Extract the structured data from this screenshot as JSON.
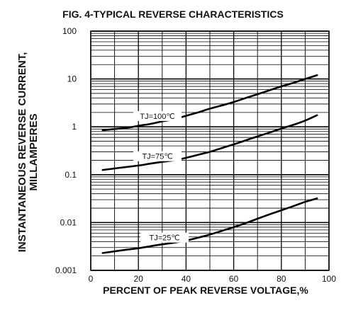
{
  "chart_data": {
    "type": "line",
    "title": "FIG. 4-TYPICAL REVERSE CHARACTERISTICS",
    "xlabel": "PERCENT OF PEAK REVERSE VOLTAGE,%",
    "ylabel_line1": "INSTANTANEOUS REVERSE CURRENT,",
    "ylabel_line2": "MILLAMPERES",
    "xlim": [
      0,
      100
    ],
    "ylim": [
      0.001,
      100
    ],
    "yscale": "log",
    "grid": true,
    "xticks": [
      "0",
      "20",
      "40",
      "60",
      "80",
      "100"
    ],
    "yticks": [
      "100",
      "10",
      "1",
      "0.1",
      "0.01",
      "0.001"
    ],
    "series": [
      {
        "name": "TJ=100℃",
        "x": [
          5,
          10,
          15,
          20,
          25,
          30,
          35,
          40,
          45,
          50,
          55,
          60,
          65,
          70,
          75,
          80,
          85,
          90,
          95
        ],
        "y": [
          0.85,
          0.9,
          0.95,
          1.05,
          1.15,
          1.3,
          1.45,
          1.7,
          2.0,
          2.4,
          2.8,
          3.3,
          4.0,
          4.8,
          5.8,
          7.0,
          8.3,
          10.0,
          12.0
        ]
      },
      {
        "name": "TJ=75℃",
        "x": [
          5,
          10,
          15,
          20,
          25,
          30,
          35,
          40,
          45,
          50,
          55,
          60,
          65,
          70,
          75,
          80,
          85,
          90,
          95
        ],
        "y": [
          0.125,
          0.135,
          0.145,
          0.155,
          0.17,
          0.185,
          0.2,
          0.225,
          0.26,
          0.3,
          0.36,
          0.43,
          0.52,
          0.63,
          0.76,
          0.92,
          1.1,
          1.35,
          1.75
        ]
      },
      {
        "name": "TJ=25℃",
        "x": [
          5,
          10,
          15,
          20,
          25,
          30,
          35,
          40,
          45,
          50,
          55,
          60,
          65,
          70,
          75,
          80,
          85,
          90,
          95
        ],
        "y": [
          0.0023,
          0.0025,
          0.0027,
          0.0029,
          0.0032,
          0.0035,
          0.0038,
          0.0042,
          0.0048,
          0.0056,
          0.0067,
          0.008,
          0.0097,
          0.012,
          0.0148,
          0.018,
          0.022,
          0.027,
          0.032
        ]
      }
    ],
    "annotations": [
      {
        "series": 0,
        "label_x": 28
      },
      {
        "series": 1,
        "label_x": 28
      },
      {
        "series": 2,
        "label_x": 31
      }
    ]
  }
}
